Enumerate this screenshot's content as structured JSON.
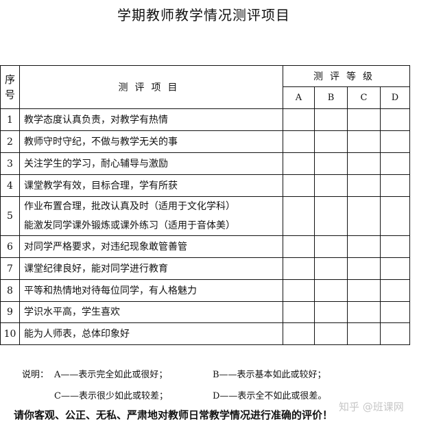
{
  "title": "学期教师教学情况测评项目",
  "table": {
    "header_no": "序号",
    "header_item": "测评项目",
    "header_grade": "测评等级",
    "grades": [
      "A",
      "B",
      "C",
      "D"
    ],
    "rows": [
      {
        "no": "1",
        "item": "教学态度认真负责，对教学有热情"
      },
      {
        "no": "2",
        "item": "教师守时守纪，不做与教学无关的事"
      },
      {
        "no": "3",
        "item": "关注学生的学习，耐心辅导与激励"
      },
      {
        "no": "4",
        "item": "课堂教学有效，目标合理，学有所获"
      },
      {
        "no": "5",
        "item": "作业布置合理，批改认真及时（适用于文化学科）",
        "item2": "能激发同学课外锻炼或课外练习（适用于音体美）"
      },
      {
        "no": "6",
        "item": "对同学严格要求，对违纪现象敢管善管"
      },
      {
        "no": "7",
        "item": "课堂纪律良好，能对同学进行教育"
      },
      {
        "no": "8",
        "item": "平等和热情地对待每位同学，有人格魅力"
      },
      {
        "no": "9",
        "item": "学识水平高，学生喜欢"
      },
      {
        "no": "10",
        "item": "能为人师表，总体印象好"
      }
    ]
  },
  "notes": {
    "label": "说明：",
    "a": "A——表示完全如此或很好；",
    "b": "B——表示基本如此或较好；",
    "c": "C——表示很少如此或较差；",
    "d": "D——表示全不如此或很差。"
  },
  "final": "请你客观、公正、无私、严肃地对教师日常教学情况进行准确的评价！",
  "watermark": "知乎 @班课网"
}
